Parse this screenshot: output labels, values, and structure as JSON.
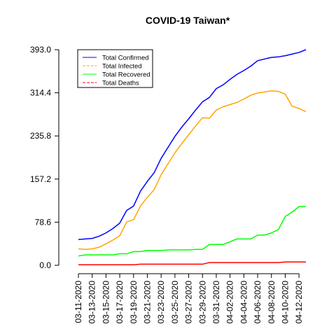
{
  "chart_data": {
    "type": "line",
    "title": "COVID-19 Taiwan*",
    "xlabel": "",
    "ylabel": "",
    "ylim": [
      0.0,
      393.0
    ],
    "y_ticks": [
      "0.0",
      "78.6",
      "157.2",
      "235.8",
      "314.4",
      "393.0"
    ],
    "x": [
      "03-11-2020",
      "03-12-2020",
      "03-13-2020",
      "03-14-2020",
      "03-15-2020",
      "03-16-2020",
      "03-17-2020",
      "03-18-2020",
      "03-19-2020",
      "03-20-2020",
      "03-21-2020",
      "03-22-2020",
      "03-23-2020",
      "03-24-2020",
      "03-25-2020",
      "03-26-2020",
      "03-27-2020",
      "03-28-2020",
      "03-29-2020",
      "03-30-2020",
      "03-31-2020",
      "04-01-2020",
      "04-02-2020",
      "04-03-2020",
      "04-04-2020",
      "04-05-2020",
      "04-06-2020",
      "04-07-2020",
      "04-08-2020",
      "04-09-2020",
      "04-10-2020",
      "04-11-2020",
      "04-12-2020",
      "04-13-2020"
    ],
    "x_tick_labels": [
      "03-11-2020",
      "03-13-2020",
      "03-15-2020",
      "03-17-2020",
      "03-19-2020",
      "03-21-2020",
      "03-23-2020",
      "03-25-2020",
      "03-27-2020",
      "03-29-2020",
      "03-31-2020",
      "04-02-2020",
      "04-04-2020",
      "04-06-2020",
      "04-08-2020",
      "04-10-2020",
      "04-12-2020"
    ],
    "legend_position": "top-left",
    "grid": false,
    "series": [
      {
        "name": "Total Confirmed",
        "color": "#0000ff",
        "dash": "solid",
        "values": [
          47,
          48,
          49,
          53,
          59,
          67,
          77,
          100,
          108,
          135,
          153,
          169,
          195,
          215,
          235,
          252,
          267,
          283,
          298,
          306,
          322,
          329,
          339,
          348,
          355,
          363,
          373,
          376,
          379,
          380,
          382,
          385,
          388,
          393
        ]
      },
      {
        "name": "Total Infected",
        "color": "#ffa500",
        "dash": "dashed",
        "values": [
          30,
          29,
          30,
          33,
          39,
          46,
          54,
          79,
          83,
          108,
          124,
          138,
          165,
          185,
          205,
          222,
          238,
          254,
          269,
          268,
          283,
          289,
          293,
          297,
          303,
          310,
          314,
          316,
          318,
          317,
          312,
          290,
          286,
          280
        ]
      },
      {
        "name": "Total Recovered",
        "color": "#00ff00",
        "dash": "solid",
        "values": [
          17,
          19,
          19,
          19,
          19,
          19,
          21,
          21,
          25,
          25,
          27,
          27,
          27,
          28,
          28,
          28,
          28,
          29,
          29,
          38,
          38,
          38,
          43,
          48,
          48,
          48,
          55,
          55,
          59,
          65,
          89,
          97,
          107,
          107
        ]
      },
      {
        "name": "Total Deaths",
        "color": "#ff0000",
        "dash": "dashed",
        "values": [
          1,
          1,
          1,
          1,
          1,
          1,
          1,
          1,
          1,
          2,
          2,
          2,
          2,
          2,
          2,
          2,
          2,
          2,
          2,
          5,
          5,
          5,
          5,
          5,
          5,
          5,
          5,
          5,
          5,
          5,
          6,
          6,
          6,
          6
        ]
      }
    ]
  }
}
